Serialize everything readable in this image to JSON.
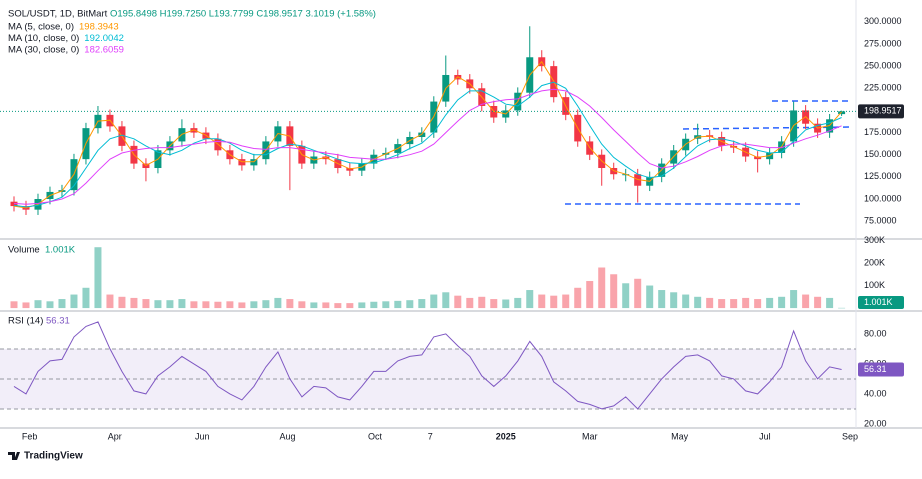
{
  "chart_data": {
    "type": "candlestick",
    "title": "SOL/USDT, 1D, BitMart",
    "ohlc_text": "O195.8498 H199.7250 L193.7799 C198.9517 3.1019 (+1.58%)",
    "colors": {
      "up": "#089981",
      "down": "#f23645"
    },
    "x": [
      0,
      1,
      2,
      3,
      4,
      5,
      6,
      7,
      8,
      9,
      10,
      11,
      12,
      13,
      14,
      15,
      16,
      17,
      18,
      19,
      20,
      21,
      22,
      23,
      24,
      25,
      26,
      27,
      28,
      29,
      30,
      31,
      32,
      33,
      34,
      35,
      36,
      37,
      38,
      39,
      40,
      41,
      42,
      43,
      44,
      45,
      46,
      47,
      48,
      49,
      50,
      51,
      52,
      53,
      54,
      55,
      56,
      57,
      58,
      59,
      60,
      61,
      62,
      63,
      64,
      65,
      66,
      67,
      68,
      69
    ],
    "xlim": [
      -0.5,
      69.7
    ],
    "xticks": [
      {
        "value": 1.3,
        "label": "Feb"
      },
      {
        "value": 8.4,
        "label": "Apr"
      },
      {
        "value": 15.7,
        "label": "Jun"
      },
      {
        "value": 22.8,
        "label": "Aug"
      },
      {
        "value": 30.1,
        "label": "Oct"
      },
      {
        "value": 34.7,
        "label": "7"
      },
      {
        "value": 41,
        "label": "2025"
      },
      {
        "value": 48,
        "label": "Mar"
      },
      {
        "value": 55.5,
        "label": "May"
      },
      {
        "value": 62.6,
        "label": "Jul"
      },
      {
        "value": 69.7,
        "label": "Sep"
      }
    ],
    "open": [
      97,
      92,
      88,
      100,
      108,
      110,
      145,
      180,
      195,
      182,
      160,
      140,
      135,
      155,
      165,
      180,
      175,
      168,
      155,
      145,
      138,
      145,
      165,
      182,
      160,
      140,
      148,
      145,
      135,
      132,
      140,
      150,
      152,
      162,
      170,
      175,
      210,
      240,
      235,
      225,
      205,
      192,
      200,
      220,
      260,
      250,
      215,
      195,
      165,
      150,
      135,
      128,
      128,
      115,
      125,
      140,
      155,
      168,
      172,
      170,
      160,
      158,
      148,
      145,
      152,
      165,
      200,
      185,
      175,
      195.8498
    ],
    "high": [
      103,
      98,
      106,
      114,
      116,
      151,
      186,
      205,
      201,
      188,
      166,
      146,
      161,
      171,
      190,
      186,
      181,
      174,
      161,
      151,
      151,
      171,
      188,
      188,
      166,
      154,
      154,
      151,
      141,
      146,
      156,
      158,
      168,
      176,
      181,
      216,
      262,
      246,
      241,
      231,
      211,
      206,
      226,
      295,
      268,
      256,
      221,
      201,
      171,
      156,
      141,
      134,
      134,
      131,
      146,
      161,
      174,
      185,
      178,
      176,
      166,
      164,
      154,
      158,
      171,
      210,
      206,
      191,
      196,
      199.725
    ],
    "low": [
      86,
      82,
      82,
      94,
      102,
      104,
      139,
      174,
      176,
      154,
      134,
      120,
      129,
      149,
      159,
      169,
      162,
      149,
      139,
      132,
      132,
      139,
      159,
      110,
      134,
      134,
      139,
      129,
      126,
      126,
      134,
      144,
      146,
      156,
      164,
      169,
      204,
      229,
      219,
      199,
      186,
      186,
      194,
      214,
      244,
      209,
      189,
      159,
      144,
      115,
      122,
      120,
      96,
      109,
      119,
      134,
      149,
      162,
      164,
      154,
      152,
      142,
      130,
      139,
      146,
      159,
      179,
      169,
      169,
      193.7799
    ],
    "close": [
      92,
      88,
      100,
      108,
      110,
      145,
      180,
      195,
      182,
      160,
      140,
      135,
      155,
      165,
      180,
      175,
      168,
      155,
      145,
      138,
      145,
      165,
      182,
      160,
      140,
      148,
      145,
      135,
      132,
      140,
      150,
      152,
      162,
      170,
      175,
      210,
      240,
      235,
      225,
      205,
      192,
      200,
      220,
      260,
      250,
      215,
      195,
      165,
      150,
      135,
      128,
      128,
      115,
      125,
      140,
      155,
      168,
      172,
      170,
      160,
      158,
      148,
      145,
      152,
      165,
      200,
      185,
      175,
      190,
      198.9517
    ],
    "ylim": [
      56,
      319
    ],
    "yticks": [
      {
        "value": 300,
        "label": "300.0000"
      },
      {
        "value": 275,
        "label": "275.0000"
      },
      {
        "value": 250,
        "label": "250.0000"
      },
      {
        "value": 225,
        "label": "225.0000"
      },
      {
        "value": 200,
        "label": "200.0000"
      },
      {
        "value": 175,
        "label": "175.0000"
      },
      {
        "value": 150,
        "label": "150.0000"
      },
      {
        "value": 125,
        "label": "125.0000"
      },
      {
        "value": 100,
        "label": "100.0000"
      },
      {
        "value": 75,
        "label": "75.0000"
      }
    ],
    "grid": false,
    "series": [
      {
        "name": "MA (5, close, 0)",
        "color": "#ff9800",
        "values": [
          92,
          90,
          94,
          104,
          109,
          128,
          163,
          188,
          189,
          171,
          150,
          138,
          145,
          160,
          173,
          178,
          172,
          162,
          150,
          142,
          142,
          155,
          174,
          171,
          150,
          144,
          147,
          140,
          134,
          136,
          145,
          151,
          157,
          166,
          173,
          193,
          225,
          238,
          230,
          215,
          199,
          196,
          210,
          240,
          255,
          233,
          205,
          180,
          158,
          143,
          132,
          128,
          122,
          120,
          133,
          148,
          162,
          170,
          171,
          165,
          159,
          153,
          147,
          149,
          159,
          183,
          193,
          180,
          183,
          198.3943
        ]
      },
      {
        "name": "MA (10, close, 0)",
        "color": "#00bcd4",
        "values": [
          93,
          91,
          93,
          97,
          102,
          115,
          135,
          155,
          168,
          172,
          168,
          160,
          153,
          150,
          155,
          163,
          168,
          168,
          163,
          155,
          150,
          150,
          157,
          162,
          160,
          155,
          150,
          145,
          141,
          140,
          141,
          145,
          150,
          157,
          163,
          175,
          195,
          212,
          222,
          222,
          215,
          207,
          205,
          215,
          228,
          232,
          225,
          205,
          183,
          162,
          147,
          137,
          128,
          124,
          126,
          135,
          148,
          160,
          167,
          168,
          165,
          160,
          155,
          152,
          153,
          165,
          178,
          183,
          186,
          192.0042
        ]
      },
      {
        "name": "MA (30, close, 0)",
        "color": "#e040fb",
        "values": [
          95,
          94,
          95,
          97,
          100,
          106,
          118,
          132,
          145,
          152,
          155,
          157,
          158,
          158,
          160,
          162,
          164,
          165,
          164,
          160,
          157,
          156,
          158,
          158,
          156,
          154,
          152,
          150,
          147,
          146,
          145,
          145,
          147,
          150,
          154,
          162,
          175,
          188,
          200,
          207,
          210,
          212,
          213,
          218,
          222,
          224,
          222,
          215,
          205,
          192,
          178,
          165,
          152,
          140,
          135,
          137,
          142,
          148,
          155,
          160,
          162,
          162,
          160,
          158,
          158,
          163,
          168,
          172,
          177,
          182.6059
        ]
      }
    ],
    "volume": {
      "title": "Volume",
      "values": [
        30000,
        25000,
        35000,
        30000,
        40000,
        60000,
        90000,
        270000,
        60000,
        50000,
        45000,
        40000,
        35000,
        35000,
        40000,
        30000,
        30000,
        28000,
        30000,
        25000,
        30000,
        35000,
        45000,
        40000,
        30000,
        25000,
        25000,
        22000,
        22000,
        25000,
        28000,
        30000,
        32000,
        35000,
        40000,
        60000,
        70000,
        55000,
        45000,
        50000,
        40000,
        38000,
        45000,
        80000,
        60000,
        55000,
        60000,
        90000,
        120000,
        180000,
        150000,
        110000,
        130000,
        100000,
        80000,
        70000,
        60000,
        50000,
        45000,
        40000,
        40000,
        45000,
        40000,
        45000,
        50000,
        80000,
        60000,
        50000,
        45000,
        1001
      ],
      "last_label": "1.001K",
      "ylim": [
        -13000,
        302000
      ],
      "yticks": [
        {
          "value": 300000,
          "label": "300K"
        },
        {
          "value": 200000,
          "label": "200K"
        },
        {
          "value": 100000,
          "label": "100K"
        }
      ]
    },
    "rsi": {
      "title": "RSI (14)",
      "color": "#7e57c2",
      "values": [
        45,
        40,
        55,
        62,
        63,
        78,
        85,
        88,
        70,
        55,
        42,
        40,
        52,
        58,
        65,
        60,
        55,
        45,
        40,
        36,
        45,
        58,
        68,
        50,
        38,
        45,
        44,
        38,
        36,
        45,
        55,
        55,
        62,
        65,
        66,
        78,
        80,
        72,
        65,
        52,
        45,
        52,
        62,
        75,
        65,
        48,
        42,
        35,
        33,
        30,
        32,
        38,
        30,
        40,
        50,
        58,
        65,
        66,
        62,
        52,
        50,
        42,
        40,
        48,
        58,
        82,
        62,
        50,
        58,
        56.31
      ],
      "levels": [
        70,
        50,
        30
      ],
      "ylim": [
        17.3,
        95.3
      ],
      "yticks": [
        {
          "value": 80,
          "label": "80.00"
        },
        {
          "value": 60,
          "label": "60.00"
        },
        {
          "value": 40,
          "label": "40.00"
        },
        {
          "value": 20,
          "label": "20.00"
        }
      ]
    },
    "brand": "TradingView"
  }
}
